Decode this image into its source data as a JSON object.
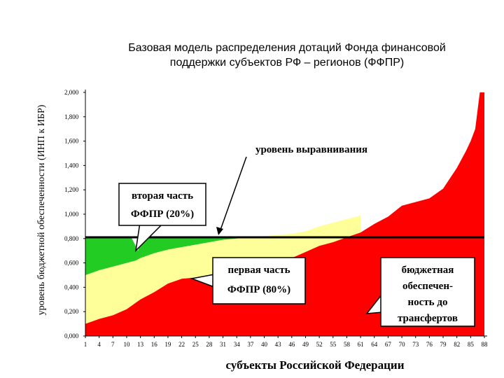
{
  "chart_data": {
    "type": "area",
    "title_lines": [
      "Базовая модель распределения дотаций Фонда финансовой",
      "поддержки субъектов РФ – регионов (ФФПР)"
    ],
    "xlabel": "субъекты Российской Федерации",
    "ylabel": "уровень бюджетной обеспеченности (ИНП к ИБР)",
    "ylim": [
      0,
      2.0
    ],
    "xlim": [
      1,
      88
    ],
    "y_ticks": [
      "0,000",
      "0,200",
      "0,400",
      "0,600",
      "0,800",
      "1,000",
      "1,200",
      "1,400",
      "1,600",
      "1,800",
      "2,000"
    ],
    "x_ticks": [
      "1",
      "4",
      "7",
      "10",
      "13",
      "16",
      "19",
      "22",
      "25",
      "28",
      "31",
      "34",
      "37",
      "40",
      "43",
      "46",
      "49",
      "52",
      "55",
      "58",
      "61",
      "64",
      "67",
      "70",
      "73",
      "76",
      "79",
      "82",
      "85",
      "88"
    ],
    "equalization_level": 0.81,
    "series": [
      {
        "name": "бюджетная обеспеченность до трансфертов",
        "color": "#ff0000",
        "x": [
          1,
          4,
          7,
          10,
          13,
          16,
          19,
          22,
          25,
          28,
          31,
          34,
          37,
          40,
          43,
          46,
          49,
          52,
          55,
          58,
          61,
          64,
          67,
          70,
          73,
          76,
          79,
          82,
          84,
          85,
          86,
          87,
          88
        ],
        "y": [
          0.1,
          0.14,
          0.17,
          0.22,
          0.3,
          0.36,
          0.43,
          0.47,
          0.48,
          0.5,
          0.53,
          0.55,
          0.56,
          0.58,
          0.61,
          0.64,
          0.69,
          0.74,
          0.77,
          0.81,
          0.85,
          0.92,
          0.98,
          1.07,
          1.1,
          1.13,
          1.21,
          1.38,
          1.52,
          1.6,
          1.7,
          2.0,
          2.0
        ]
      },
      {
        "name": "первая часть ФФПР (80%)",
        "color": "#ffff99",
        "x": [
          1,
          4,
          7,
          10,
          12,
          13,
          16,
          19,
          22,
          25,
          28,
          31,
          34,
          37,
          40,
          43,
          46,
          49,
          52,
          55,
          58,
          61
        ],
        "y": [
          0.5,
          0.54,
          0.57,
          0.6,
          0.62,
          0.64,
          0.68,
          0.71,
          0.73,
          0.75,
          0.77,
          0.79,
          0.8,
          0.81,
          0.82,
          0.83,
          0.84,
          0.86,
          0.9,
          0.93,
          0.96,
          0.99
        ]
      },
      {
        "name": "вторая часть ФФПР (20%)",
        "color": "#22cc22",
        "x": [
          1,
          11,
          12,
          13,
          16,
          19,
          22,
          25,
          28,
          31,
          34,
          36
        ],
        "y": [
          0.81,
          0.81,
          0.81,
          0.81,
          0.81,
          0.81,
          0.81,
          0.81,
          0.81,
          0.81,
          0.81,
          0.81
        ]
      }
    ],
    "annotations": [
      {
        "id": "equalization",
        "text": "уровень выравнивания"
      },
      {
        "id": "second",
        "lines": [
          "вторая часть",
          "ФФПР (20%)"
        ]
      },
      {
        "id": "first",
        "lines": [
          "первая часть",
          "ФФПР (80%)"
        ]
      },
      {
        "id": "budget",
        "lines": [
          "бюджетная",
          "обеспечен-",
          "ность до",
          "трансфертов"
        ]
      }
    ]
  }
}
